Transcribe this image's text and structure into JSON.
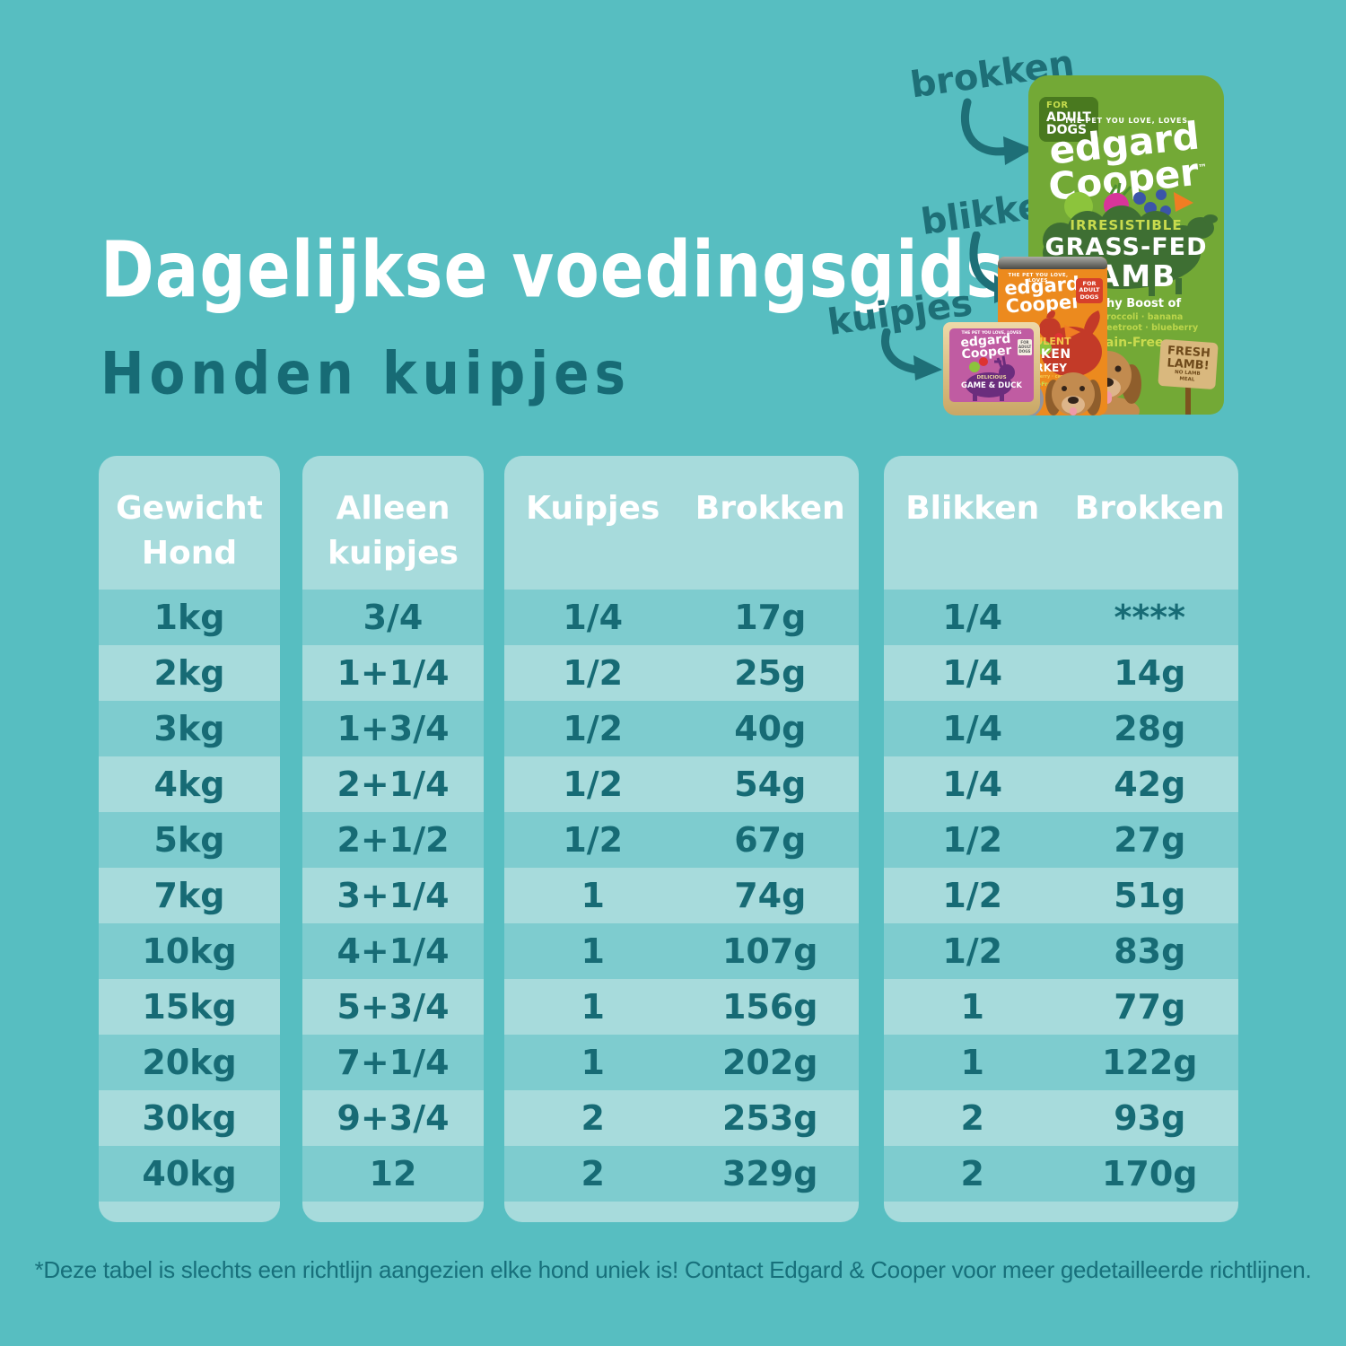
{
  "header": {
    "title": "Dagelijkse voedingsgids",
    "subtitle": "Honden kuipjes"
  },
  "annotations": {
    "brokken_label": "brokken",
    "blikken_label": "blikken",
    "kuipjes_label": "kuipjes"
  },
  "products": {
    "bag": {
      "badge_for": "FOR",
      "badge_adult": "ADULT",
      "badge_dogs": "DOGS",
      "tagline": "THE PET YOU LOVE, LOVES",
      "brand_top": "edgard",
      "brand_bottom": "Cooper",
      "trademark": "™",
      "kicker": "IRRESISTIBLE",
      "name_line1": "GRASS-FED",
      "name_line2": "LAMB",
      "boost_title": "Healthy Boost of",
      "boost_line1": "pear · broccoli · banana",
      "boost_line2": "spinach · beetroot · blueberry",
      "grain_free": "Grain-Free",
      "sign_line1": "FRESH",
      "sign_line2": "LAMB!",
      "sign_line3": "NO LAMB",
      "sign_line4": "MEAL"
    },
    "can": {
      "tagline": "THE PET YOU LOVE, LOVES",
      "brand_top": "edgard",
      "brand_bottom": "Cooper",
      "badge": "FOR ADULT DOGS",
      "kicker": "SUCCULENT",
      "name_line1": "CHICKEN",
      "name_line2": "&TURKEY",
      "sub_line": "apple · strawberry · carrots",
      "grain_free": "Grain-Free"
    },
    "tub": {
      "tagline": "THE PET YOU LOVE, LOVES",
      "brand_top": "edgard",
      "brand_bottom": "Cooper",
      "badge": "FOR ADULT DOGS",
      "kicker": "DELICIOUS",
      "name": "GAME & DUCK"
    }
  },
  "chart_data": {
    "type": "table",
    "title": "Dagelijkse voedingsgids",
    "subtitle": "Honden kuipjes",
    "panels": [
      {
        "id": "gewicht-hond",
        "header_lines": [
          "Gewicht",
          "Hond"
        ],
        "columns": [
          "weight"
        ]
      },
      {
        "id": "alleen-kuipjes",
        "header_lines": [
          "Alleen",
          "kuipjes"
        ],
        "columns": [
          "alleen_kuipjes"
        ]
      },
      {
        "id": "kuipjes-brokken",
        "header_lines": [
          "Kuipjes",
          "Brokken"
        ],
        "columns": [
          "kuipjes",
          "brokken"
        ]
      },
      {
        "id": "blikken-brokken",
        "header_lines": [
          "Blikken",
          "Brokken"
        ],
        "columns": [
          "blikken",
          "brokken_bij_blikken"
        ]
      }
    ],
    "rows": [
      {
        "weight": "1kg",
        "alleen_kuipjes": "3/4",
        "kuipjes": "1/4",
        "brokken": "17g",
        "blikken": "1/4",
        "brokken_bij_blikken": "****"
      },
      {
        "weight": "2kg",
        "alleen_kuipjes": "1+1/4",
        "kuipjes": "1/2",
        "brokken": "25g",
        "blikken": "1/4",
        "brokken_bij_blikken": "14g"
      },
      {
        "weight": "3kg",
        "alleen_kuipjes": "1+3/4",
        "kuipjes": "1/2",
        "brokken": "40g",
        "blikken": "1/4",
        "brokken_bij_blikken": "28g"
      },
      {
        "weight": "4kg",
        "alleen_kuipjes": "2+1/4",
        "kuipjes": "1/2",
        "brokken": "54g",
        "blikken": "1/4",
        "brokken_bij_blikken": "42g"
      },
      {
        "weight": "5kg",
        "alleen_kuipjes": "2+1/2",
        "kuipjes": "1/2",
        "brokken": "67g",
        "blikken": "1/2",
        "brokken_bij_blikken": "27g"
      },
      {
        "weight": "7kg",
        "alleen_kuipjes": "3+1/4",
        "kuipjes": "1",
        "brokken": "74g",
        "blikken": "1/2",
        "brokken_bij_blikken": "51g"
      },
      {
        "weight": "10kg",
        "alleen_kuipjes": "4+1/4",
        "kuipjes": "1",
        "brokken": "107g",
        "blikken": "1/2",
        "brokken_bij_blikken": "83g"
      },
      {
        "weight": "15kg",
        "alleen_kuipjes": "5+3/4",
        "kuipjes": "1",
        "brokken": "156g",
        "blikken": "1",
        "brokken_bij_blikken": "77g"
      },
      {
        "weight": "20kg",
        "alleen_kuipjes": "7+1/4",
        "kuipjes": "1",
        "brokken": "202g",
        "blikken": "1",
        "brokken_bij_blikken": "122g"
      },
      {
        "weight": "30kg",
        "alleen_kuipjes": "9+3/4",
        "kuipjes": "2",
        "brokken": "253g",
        "blikken": "2",
        "brokken_bij_blikken": "93g"
      },
      {
        "weight": "40kg",
        "alleen_kuipjes": "12",
        "kuipjes": "2",
        "brokken": "329g",
        "blikken": "2",
        "brokken_bij_blikken": "170g"
      }
    ],
    "layout": {
      "row_striping": "odd rows dark teal, even rows light teal",
      "panel_corner_radius_px": 20
    }
  },
  "colors": {
    "background": "#57BEC1",
    "panel_light": "#A7DBDC",
    "row_dark": "#7ECCCF",
    "ink": "#176B75",
    "title_white": "#FFFFFF",
    "bag_green": "#73A936",
    "can_orange": "#EC8A1E",
    "tub_pink": "#C05CA2"
  },
  "footer": {
    "note": "*Deze tabel is slechts een richtlijn aangezien elke hond uniek is! Contact Edgard & Cooper voor meer gedetailleerde richtlijnen."
  }
}
